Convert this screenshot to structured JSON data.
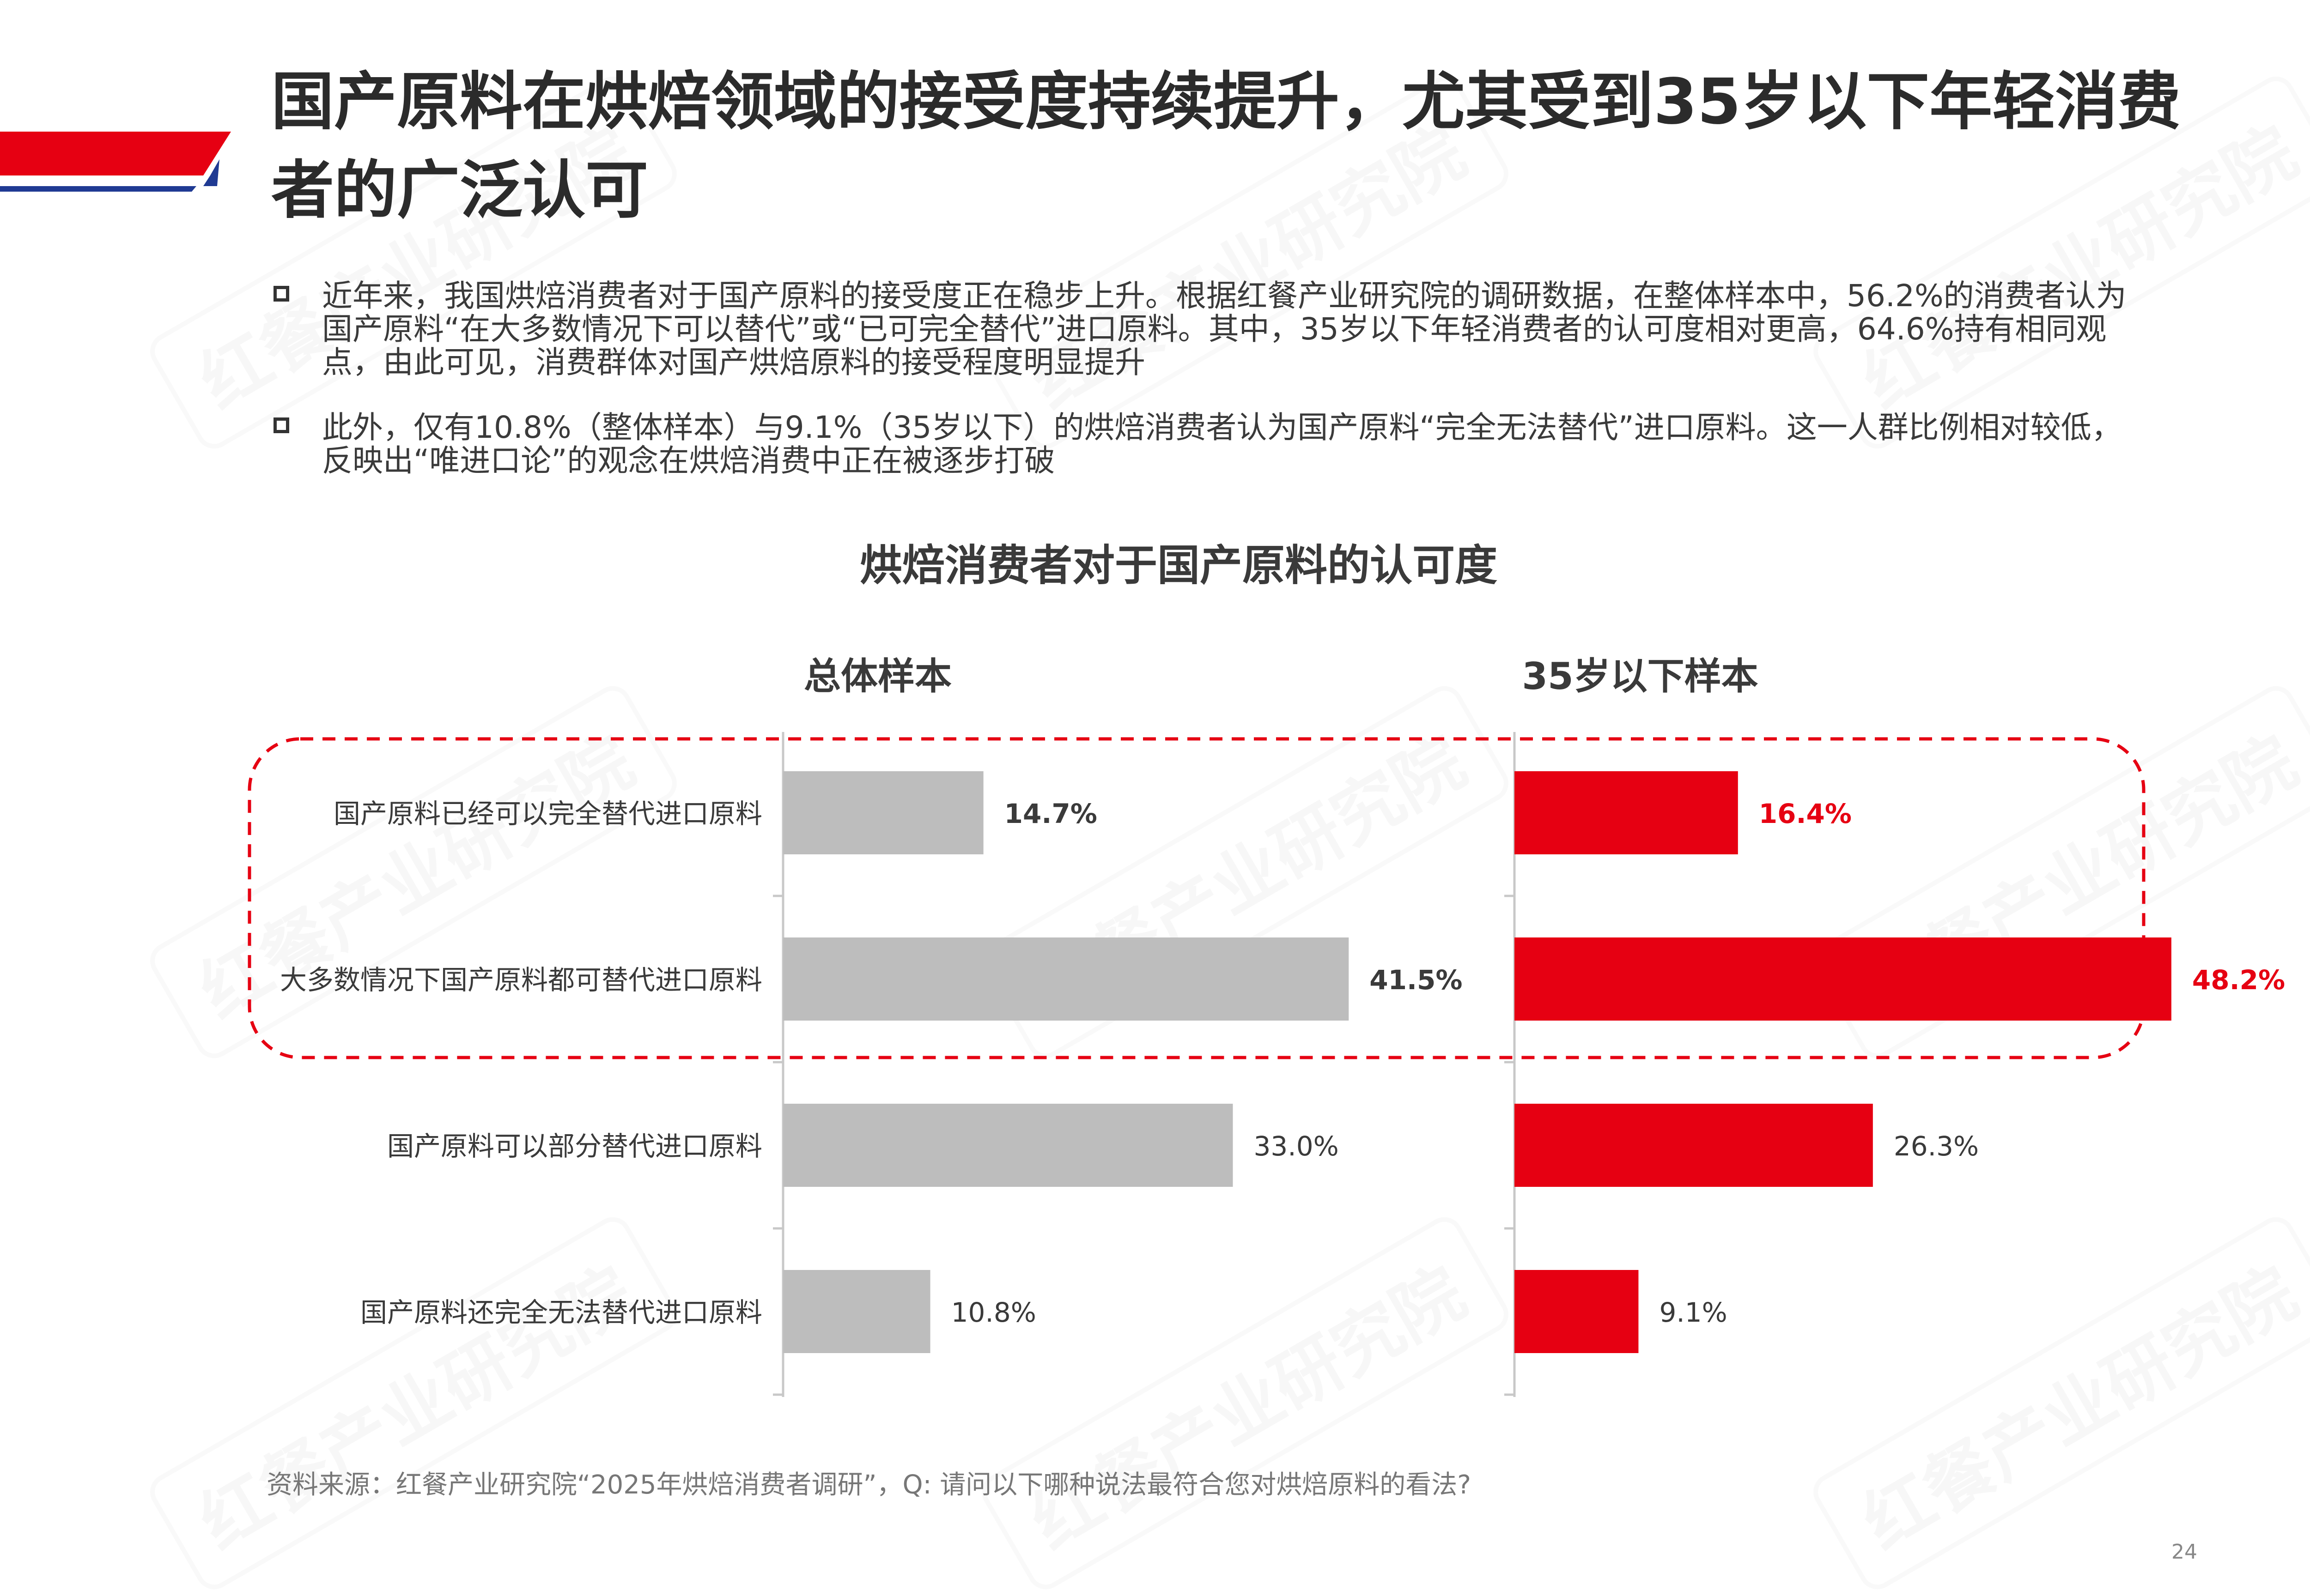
{
  "page": {
    "title": "国产原料在烘焙领域的接受度持续提升，尤其受到35岁以下年轻消费者的广泛认可",
    "bullets": [
      "近年来，我国烘焙消费者对于国产原料的接受度正在稳步上升。根据红餐产业研究院的调研数据，在整体样本中，56.2%的消费者认为国产原料“在大多数情况下可以替代”或“已可完全替代”进口原料。其中，35岁以下年轻消费者的认可度相对更高，64.6%持有相同观点，由此可见，消费群体对国产烘焙原料的接受程度明显提升",
      "此外，仅有10.8%（整体样本）与9.1%（35岁以下）的烘焙消费者认为国产原料“完全无法替代”进口原料。这一人群比例相对较低，反映出“唯进口论”的观念在烘焙消费中正在被逐步打破"
    ],
    "source": "资料来源：红餐产业研究院“2025年烘焙消费者调研”，Q: 请问以下哪种说法最符合您对烘焙原料的看法?",
    "page_number": "24",
    "watermark": "红餐产业研究院"
  },
  "colors": {
    "accent_red": "#e60012",
    "accent_blue": "#1f3a93",
    "bar_gray": "#bdbdbd",
    "highlight_dash": "#e60012"
  },
  "chart_data": {
    "type": "bar",
    "orientation": "horizontal",
    "title": "烘焙消费者对于国产原料的认可度",
    "categories": [
      "国产原料已经可以完全替代进口原料",
      "大多数情况下国产原料都可替代进口原料",
      "国产原料可以部分替代进口原料",
      "国产原料还完全无法替代进口原料"
    ],
    "series": [
      {
        "name": "总体样本",
        "values": [
          14.7,
          41.5,
          33.0,
          10.8
        ],
        "labels": [
          "14.7%",
          "41.5%",
          "33.0%",
          "10.8%"
        ],
        "color": "#bdbdbd"
      },
      {
        "name": "35岁以下样本",
        "values": [
          16.4,
          48.2,
          26.3,
          9.1
        ],
        "labels": [
          "16.4%",
          "48.2%",
          "26.3%",
          "9.1%"
        ],
        "color": "#e60012"
      }
    ],
    "highlighted_categories": [
      0,
      1
    ],
    "grid": false
  }
}
